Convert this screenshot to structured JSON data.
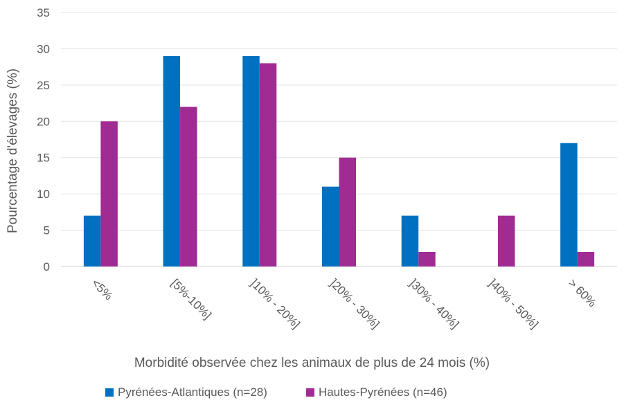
{
  "chart_data": {
    "type": "bar",
    "title": "",
    "xlabel": "Morbidité observée chez les animaux de plus de 24 mois (%)",
    "ylabel": "Pourcentage d'élevages (%)",
    "ylim": [
      0,
      35
    ],
    "yticks": [
      0,
      5,
      10,
      15,
      20,
      25,
      30,
      35
    ],
    "grid": true,
    "legend_position": "bottom",
    "categories": [
      "<5%",
      "[5%-10%]",
      "]10% - 20%]",
      "]20% - 30%]",
      "]30% - 40%]",
      "]40% - 50%]",
      "> 60%"
    ],
    "series": [
      {
        "name": "Pyrénées-Atlantiques (n=28)",
        "color": "#0070C0",
        "values": [
          7,
          29,
          29,
          11,
          7,
          0,
          17
        ]
      },
      {
        "name": "Hautes-Pyrénées (n=46)",
        "color": "#A02B93",
        "values": [
          20,
          22,
          28,
          15,
          2,
          7,
          2
        ]
      }
    ]
  }
}
